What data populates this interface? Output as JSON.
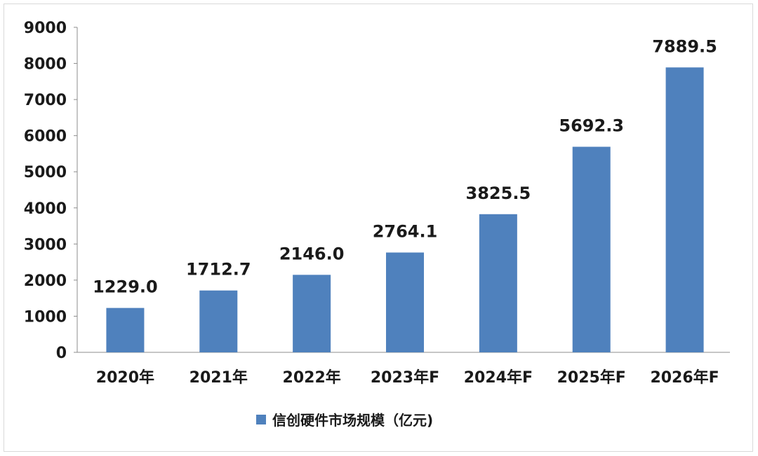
{
  "chart_data": {
    "type": "bar",
    "title": "",
    "xlabel": "",
    "ylabel": "",
    "categories": [
      "2020年",
      "2021年",
      "2022年",
      "2023年F",
      "2024年F",
      "2025年F",
      "2026年F"
    ],
    "series": [
      {
        "name": "信创硬件市场规模（亿元)",
        "values": [
          1229.0,
          1712.7,
          2146.0,
          2764.1,
          3825.5,
          5692.3,
          7889.5
        ],
        "labels": [
          "1229.0",
          "1712.7",
          "2146.0",
          "2764.1",
          "3825.5",
          "5692.3",
          "7889.5"
        ],
        "color": "#4f81bd"
      }
    ],
    "ylim": [
      0,
      9000
    ],
    "yticks": [
      0,
      1000,
      2000,
      3000,
      4000,
      5000,
      6000,
      7000,
      8000,
      9000
    ],
    "grid": false,
    "legend_position": "bottom"
  }
}
